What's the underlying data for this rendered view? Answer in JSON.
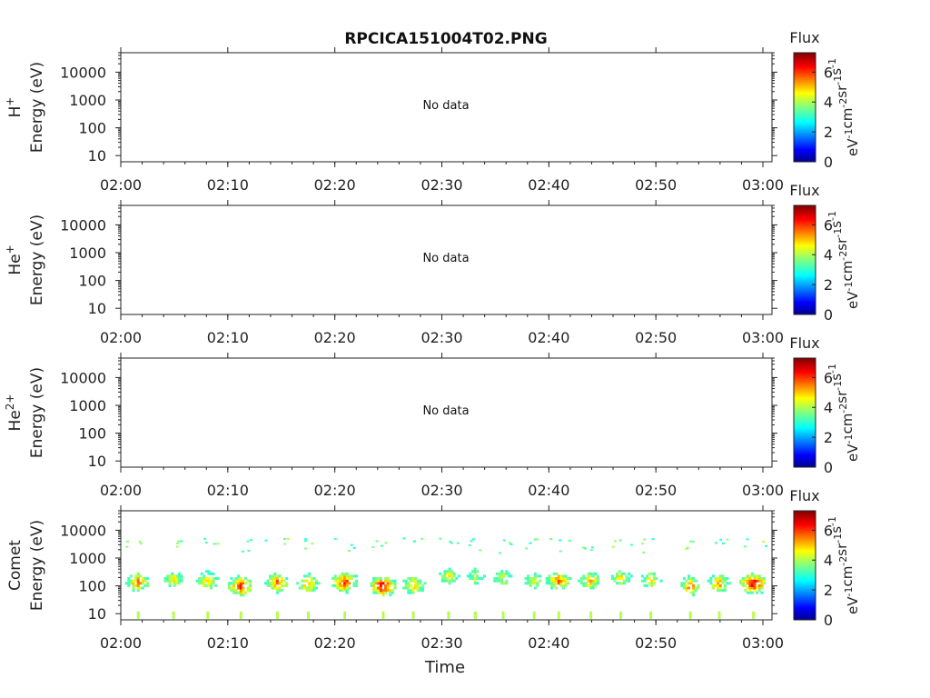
{
  "title": "RPCICA151004T02.PNG",
  "colorbar": {
    "label": "Flux",
    "unit_text": "eV-1cm-2sr-1s-1",
    "ticks": [
      "0",
      "2",
      "4",
      "6"
    ],
    "range": [
      0,
      7.3
    ]
  },
  "x_ticks": [
    "02:00",
    "02:10",
    "02:20",
    "02:30",
    "02:40",
    "02:50",
    "03:00"
  ],
  "x_label": "Time",
  "y_ticks": [
    "10000",
    "1000",
    "100",
    "10"
  ],
  "panels": [
    {
      "ion": "H",
      "sup": "+",
      "ylabel": "Energy (eV)",
      "no_data": "No data"
    },
    {
      "ion": "He",
      "sup": "+",
      "ylabel": "Energy (eV)",
      "no_data": "No data"
    },
    {
      "ion": "He",
      "sup": "2+",
      "ylabel": "Energy (eV)",
      "no_data": "No data"
    },
    {
      "ion": "Comet",
      "sup": "",
      "ylabel": "Energy (eV)",
      "no_data": ""
    }
  ],
  "chart_data": {
    "type": "heatmap",
    "title": "RPCICA151004T02.PNG",
    "xlabel": "Time",
    "ylabel": "Energy (eV)",
    "x_range": [
      "02:00",
      "03:00"
    ],
    "y_range": [
      6,
      50000
    ],
    "y_scale": "log",
    "colorbar_label": "Flux",
    "colorbar_range": [
      0,
      7.3
    ],
    "panels": [
      "H+",
      "He+",
      "He2+",
      "Comet"
    ],
    "comet_bursts": [
      {
        "t_min": 1.5,
        "width_min": 2.2,
        "peak_energy_ev": 120,
        "peak_flux": 5.4
      },
      {
        "t_min": 4.8,
        "width_min": 2.0,
        "peak_energy_ev": 150,
        "peak_flux": 4.8
      },
      {
        "t_min": 8.0,
        "width_min": 2.0,
        "peak_energy_ev": 140,
        "peak_flux": 5.2
      },
      {
        "t_min": 11.1,
        "width_min": 2.2,
        "peak_energy_ev": 90,
        "peak_flux": 6.1
      },
      {
        "t_min": 14.5,
        "width_min": 2.2,
        "peak_energy_ev": 120,
        "peak_flux": 5.6
      },
      {
        "t_min": 17.4,
        "width_min": 2.0,
        "peak_energy_ev": 110,
        "peak_flux": 5.3
      },
      {
        "t_min": 20.8,
        "width_min": 2.2,
        "peak_energy_ev": 120,
        "peak_flux": 6.2
      },
      {
        "t_min": 24.4,
        "width_min": 2.2,
        "peak_energy_ev": 90,
        "peak_flux": 6.8
      },
      {
        "t_min": 27.2,
        "width_min": 2.2,
        "peak_energy_ev": 100,
        "peak_flux": 5.2
      },
      {
        "t_min": 30.5,
        "width_min": 2.0,
        "peak_energy_ev": 200,
        "peak_flux": 4.6
      },
      {
        "t_min": 33.0,
        "width_min": 1.8,
        "peak_energy_ev": 200,
        "peak_flux": 4.4
      },
      {
        "t_min": 35.6,
        "width_min": 2.0,
        "peak_energy_ev": 180,
        "peak_flux": 4.5
      },
      {
        "t_min": 38.5,
        "width_min": 2.0,
        "peak_energy_ev": 150,
        "peak_flux": 4.6
      },
      {
        "t_min": 40.8,
        "width_min": 2.2,
        "peak_energy_ev": 140,
        "peak_flux": 5.6
      },
      {
        "t_min": 43.8,
        "width_min": 2.2,
        "peak_energy_ev": 140,
        "peak_flux": 5.0
      },
      {
        "t_min": 46.6,
        "width_min": 2.0,
        "peak_energy_ev": 170,
        "peak_flux": 4.7
      },
      {
        "t_min": 49.4,
        "width_min": 2.0,
        "peak_energy_ev": 150,
        "peak_flux": 4.6
      },
      {
        "t_min": 53.1,
        "width_min": 1.6,
        "peak_energy_ev": 90,
        "peak_flux": 6.0
      },
      {
        "t_min": 55.8,
        "width_min": 2.0,
        "peak_energy_ev": 110,
        "peak_flux": 5.3
      },
      {
        "t_min": 59.0,
        "width_min": 2.4,
        "peak_energy_ev": 110,
        "peak_flux": 6.7
      }
    ]
  }
}
